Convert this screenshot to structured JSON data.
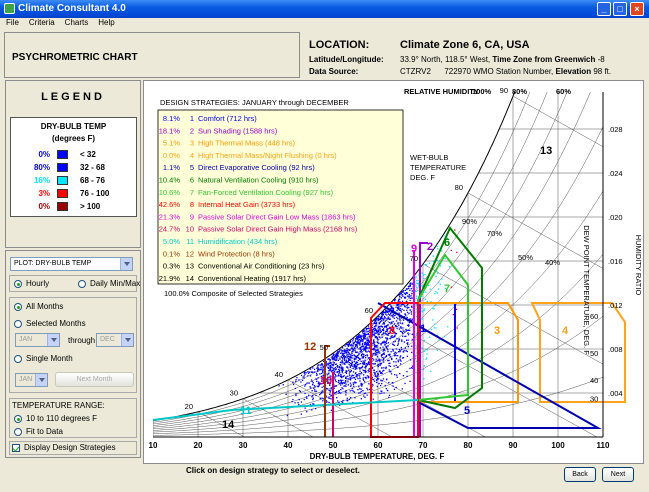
{
  "window": {
    "title": "Climate Consultant 4.0"
  },
  "menu": [
    "File",
    "Criteria",
    "Charts",
    "Help"
  ],
  "header": {
    "chart_name": "PSYCHROMETRIC CHART",
    "location_label": "LOCATION:",
    "location": "Climate Zone 6, CA, USA",
    "latlon_label": "Latitude/Longitude:",
    "latlon": "33.9° North, 118.5° West,",
    "tz_label": "Time Zone from Greenwich",
    "tz": "-8",
    "source_label": "Data Source:",
    "source": "CTZRV2",
    "wmo": "722970",
    "wmo_label": "WMO Station Number,",
    "elev_label": "Elevation",
    "elev": "98 ft."
  },
  "legend": {
    "title": "LEGEND",
    "box_title": "DRY-BULB TEMP",
    "units": "(degrees F)",
    "rows": [
      {
        "pct": "0%",
        "range": "< 32",
        "color": "#0000ff"
      },
      {
        "pct": "80%",
        "range": "32 - 68",
        "color": "#0000ff"
      },
      {
        "pct": "16%",
        "range": "68 - 76",
        "color": "#00e5ff"
      },
      {
        "pct": "3%",
        "range": "76 - 100",
        "color": "#ff0000"
      },
      {
        "pct": "0%",
        "range": "> 100",
        "color": "#990000"
      }
    ]
  },
  "controls": {
    "plot": "PLOT: DRY-BULB TEMP",
    "hourly": "Hourly",
    "daily": "Daily Min/Max",
    "all_months": "All Months",
    "selected_months": "Selected Months",
    "from": "JAN",
    "through": "through",
    "to": "DEC",
    "single_month": "Single Month",
    "month": "JAN",
    "next_month": "Next Month",
    "temp_range": "TEMPERATURE RANGE:",
    "range_option": "10 to 110 degrees F",
    "fit": "Fit to Data",
    "display": "Display Design Strategies"
  },
  "chart": {
    "strategies_title": "DESIGN STRATEGIES:  JANUARY through DECEMBER",
    "strategies": [
      {
        "pct": "8.1%",
        "num": "1",
        "name": "Comfort (712 hrs)",
        "color": "#0000ff"
      },
      {
        "pct": "18.1%",
        "num": "2",
        "name": "Sun Shading (1588 hrs)",
        "color": "#9900cc"
      },
      {
        "pct": "5.1%",
        "num": "3",
        "name": "High Thermal Mass (448 hrs)",
        "color": "#ff9900"
      },
      {
        "pct": "0.0%",
        "num": "4",
        "name": "High Thermal Mass/Night Flushing (0 hrs)",
        "color": "#ffa31a"
      },
      {
        "pct": "1.1%",
        "num": "5",
        "name": "Direct Evaporative Cooling (92 hrs)",
        "color": "#0000b0"
      },
      {
        "pct": "10.4%",
        "num": "6",
        "name": "Natural Ventilation Cooling (910 hrs)",
        "color": "#007a00"
      },
      {
        "pct": "10.6%",
        "num": "7",
        "name": "Fan-Forced Ventilation Cooling (927 hrs)",
        "color": "#33c633"
      },
      {
        "pct": "42.6%",
        "num": "8",
        "name": "Internal Heat Gain (3733 hrs)",
        "color": "#ff0000"
      },
      {
        "pct": "21.3%",
        "num": "9",
        "name": "Passive Solar Direct Gain Low Mass (1863 hrs)",
        "color": "#e000e0"
      },
      {
        "pct": "24.7%",
        "num": "10",
        "name": "Passive Solar Direct Gain High Mass (2168 hrs)",
        "color": "#d0006a"
      },
      {
        "pct": "5.0%",
        "num": "11",
        "name": "Humidification (434 hrs)",
        "color": "#00c8c8"
      },
      {
        "pct": "0.1%",
        "num": "12",
        "name": "Wind Protection (8 hrs)",
        "color": "#993300"
      },
      {
        "pct": "0.3%",
        "num": "13",
        "name": "Conventional Air Conditioning (23 hrs)",
        "color": "#000000"
      },
      {
        "pct": "21.9%",
        "num": "14",
        "name": "Conventional Heating (1917 hrs)",
        "color": "#000000"
      }
    ],
    "composite": "100.0% Composite of Selected Strategies",
    "x_label": "DRY-BULB TEMPERATURE, DEG. F",
    "x_ticks": [
      10,
      20,
      30,
      40,
      50,
      60,
      70,
      80,
      90,
      100,
      110
    ],
    "hr_label": "HUMIDITY RATIO",
    "hr_ticks": [
      {
        "value": 0.028,
        "label": ".028"
      },
      {
        "value": 0.024,
        "label": ".024"
      },
      {
        "value": 0.02,
        "label": ".020"
      },
      {
        "value": 0.016,
        "label": ".016"
      },
      {
        "value": 0.012,
        "label": ".012"
      },
      {
        "value": 0.008,
        "label": ".008"
      },
      {
        "value": 0.004,
        "label": ".004"
      }
    ],
    "dp_label": "DEW POINT TEMPERATURE, DEG. F",
    "dp_ticks": [
      30,
      40,
      50,
      60
    ],
    "wb_title": [
      "WET-BULB",
      "TEMPERATURE",
      "DEG. F"
    ],
    "wb_ticks": [
      20,
      30,
      40,
      50,
      60,
      70,
      80,
      90
    ],
    "rh_title": "RELATIVE HUMIDITY",
    "rh_top": [
      "100%",
      "80%",
      "60%"
    ],
    "rh_labels": [
      "90%",
      "70%",
      "50%",
      "40%"
    ]
  },
  "footer": {
    "hint": "Click on design strategy to select or deselect.",
    "back": "Back",
    "next": "Next"
  }
}
